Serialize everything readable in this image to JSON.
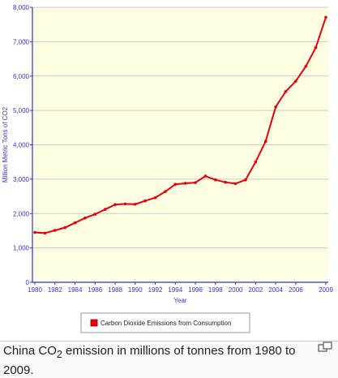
{
  "caption": {
    "prefix": "China CO",
    "subscript": "2",
    "suffix": " emission in millions of tonnes from 1980 to 2009."
  },
  "icons": {
    "enlarge": "enlarge-icon"
  },
  "colors": {
    "plot_background": "#fdfde1",
    "axis": "#3333cc",
    "series": "#e8000b",
    "gridline": "#cccccc",
    "tick_label": "#3333cc"
  },
  "chart_data": {
    "type": "line",
    "title": "",
    "xlabel": "Year",
    "ylabel": "Million Metric Tons of CO2",
    "xlim": [
      1980,
      2009
    ],
    "ylim": [
      0,
      8000
    ],
    "x_ticks": [
      1980,
      1982,
      1984,
      1986,
      1988,
      1990,
      1992,
      1994,
      1996,
      1998,
      2000,
      2002,
      2004,
      2006,
      2009
    ],
    "y_ticks": [
      0,
      1000,
      2000,
      3000,
      4000,
      5000,
      6000,
      7000,
      8000
    ],
    "y_tick_labels": [
      "0",
      "1,000",
      "2,000",
      "3,000",
      "4,000",
      "5,000",
      "6,000",
      "7,000",
      "8,000"
    ],
    "grid": "horizontal",
    "legend_position": "bottom",
    "series": [
      {
        "name": "Carbon Dioxide Emissions from Consumption",
        "x": [
          1980,
          1981,
          1982,
          1983,
          1984,
          1985,
          1986,
          1987,
          1988,
          1989,
          1990,
          1991,
          1992,
          1993,
          1994,
          1995,
          1996,
          1997,
          1998,
          1999,
          2000,
          2001,
          2002,
          2003,
          2004,
          2005,
          2006,
          2007,
          2008,
          2009
        ],
        "values": [
          1450,
          1430,
          1510,
          1590,
          1730,
          1870,
          1980,
          2120,
          2260,
          2280,
          2270,
          2370,
          2460,
          2640,
          2850,
          2880,
          2900,
          3090,
          2980,
          2910,
          2870,
          2980,
          3500,
          4100,
          5100,
          5550,
          5850,
          6280,
          6830,
          7710
        ]
      }
    ]
  }
}
